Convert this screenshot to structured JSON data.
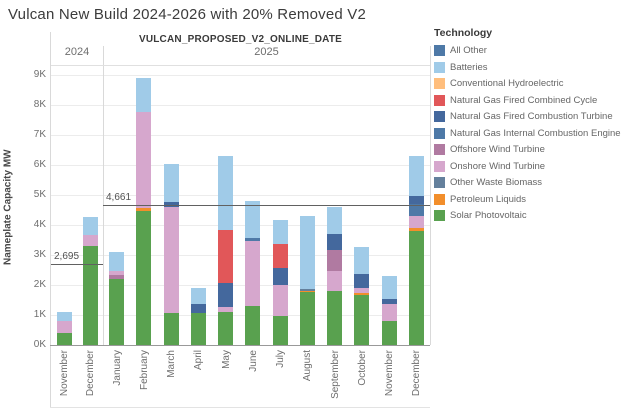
{
  "page": {
    "title": "Vulcan New Build 2024-2026 with 20% Removed V2"
  },
  "legend": {
    "title": "Technology"
  },
  "chart_data": {
    "type": "bar",
    "stacked": true,
    "field_label": "VULCAN_PROPOSED_V2_ONLINE_DATE",
    "ylabel": "Nameplate Capacity MW",
    "yticks": [
      "0K",
      "1K",
      "2K",
      "3K",
      "4K",
      "5K",
      "6K",
      "7K",
      "8K",
      "9K"
    ],
    "ylim": [
      0,
      9333
    ],
    "grid": true,
    "legend_position": "right",
    "technologies": [
      {
        "id": "all_other",
        "name": "All Other",
        "color": "#4e79a7"
      },
      {
        "id": "batteries",
        "name": "Batteries",
        "color": "#a0cbe8"
      },
      {
        "id": "conv_hydro",
        "name": "Conventional Hydroelectric",
        "color": "#ffbe7d"
      },
      {
        "id": "ngcc",
        "name": "Natural Gas Fired Combined Cycle",
        "color": "#e15759"
      },
      {
        "id": "ngct",
        "name": "Natural Gas Fired Combustion Turbine",
        "color": "#44689d"
      },
      {
        "id": "ngice",
        "name": "Natural Gas Internal Combustion Engine",
        "color": "#4e79a7"
      },
      {
        "id": "offshore",
        "name": "Offshore Wind Turbine",
        "color": "#b07aa1"
      },
      {
        "id": "onshore",
        "name": "Onshore Wind Turbine",
        "color": "#d6a7cd"
      },
      {
        "id": "biomass",
        "name": "Other Waste Biomass",
        "color": "#64809c"
      },
      {
        "id": "petroleum",
        "name": "Petroleum Liquids",
        "color": "#f28e2b"
      },
      {
        "id": "solar",
        "name": "Solar Photovoltaic",
        "color": "#59a14f"
      }
    ],
    "panes": [
      {
        "year": "2024",
        "reference_line": {
          "value": 2695,
          "label": "2,695"
        },
        "bars": [
          {
            "month": "November",
            "segments": [
              {
                "tech": "solar",
                "mw": 400
              },
              {
                "tech": "onshore",
                "mw": 400
              },
              {
                "tech": "batteries",
                "mw": 300
              }
            ]
          },
          {
            "month": "December",
            "segments": [
              {
                "tech": "solar",
                "mw": 3300
              },
              {
                "tech": "onshore",
                "mw": 350
              },
              {
                "tech": "batteries",
                "mw": 600
              }
            ]
          }
        ]
      },
      {
        "year": "2025",
        "reference_line": {
          "value": 4661,
          "label": "4,661"
        },
        "bars": [
          {
            "month": "January",
            "segments": [
              {
                "tech": "solar",
                "mw": 2200
              },
              {
                "tech": "offshore",
                "mw": 130
              },
              {
                "tech": "onshore",
                "mw": 130
              },
              {
                "tech": "batteries",
                "mw": 640
              }
            ]
          },
          {
            "month": "February",
            "segments": [
              {
                "tech": "solar",
                "mw": 4450
              },
              {
                "tech": "petroleum",
                "mw": 130
              },
              {
                "tech": "onshore",
                "mw": 3200
              },
              {
                "tech": "batteries",
                "mw": 1120
              }
            ]
          },
          {
            "month": "March",
            "segments": [
              {
                "tech": "solar",
                "mw": 1050
              },
              {
                "tech": "onshore",
                "mw": 3550
              },
              {
                "tech": "ngct",
                "mw": 150
              },
              {
                "tech": "batteries",
                "mw": 1280
              }
            ]
          },
          {
            "month": "April",
            "segments": [
              {
                "tech": "solar",
                "mw": 1050
              },
              {
                "tech": "ngct",
                "mw": 300
              },
              {
                "tech": "batteries",
                "mw": 550
              }
            ]
          },
          {
            "month": "May",
            "segments": [
              {
                "tech": "solar",
                "mw": 1100
              },
              {
                "tech": "onshore",
                "mw": 170
              },
              {
                "tech": "ngct",
                "mw": 800
              },
              {
                "tech": "ngcc",
                "mw": 1750
              },
              {
                "tech": "batteries",
                "mw": 2480
              }
            ]
          },
          {
            "month": "June",
            "segments": [
              {
                "tech": "solar",
                "mw": 1300
              },
              {
                "tech": "onshore",
                "mw": 2150
              },
              {
                "tech": "ngice",
                "mw": 100
              },
              {
                "tech": "batteries",
                "mw": 1250
              }
            ]
          },
          {
            "month": "July",
            "segments": [
              {
                "tech": "solar",
                "mw": 950
              },
              {
                "tech": "onshore",
                "mw": 1050
              },
              {
                "tech": "ngct",
                "mw": 580
              },
              {
                "tech": "ngcc",
                "mw": 800
              },
              {
                "tech": "batteries",
                "mw": 800
              }
            ]
          },
          {
            "month": "August",
            "segments": [
              {
                "tech": "solar",
                "mw": 1750
              },
              {
                "tech": "petroleum",
                "mw": 50
              },
              {
                "tech": "biomass",
                "mw": 60
              },
              {
                "tech": "batteries",
                "mw": 2440
              }
            ]
          },
          {
            "month": "September",
            "segments": [
              {
                "tech": "solar",
                "mw": 1800
              },
              {
                "tech": "onshore",
                "mw": 650
              },
              {
                "tech": "offshore",
                "mw": 700
              },
              {
                "tech": "ngct",
                "mw": 550
              },
              {
                "tech": "batteries",
                "mw": 900
              }
            ]
          },
          {
            "month": "October",
            "segments": [
              {
                "tech": "solar",
                "mw": 1650
              },
              {
                "tech": "petroleum",
                "mw": 80
              },
              {
                "tech": "onshore",
                "mw": 170
              },
              {
                "tech": "ngct",
                "mw": 450
              },
              {
                "tech": "batteries",
                "mw": 900
              }
            ]
          },
          {
            "month": "November",
            "segments": [
              {
                "tech": "solar",
                "mw": 800
              },
              {
                "tech": "onshore",
                "mw": 580
              },
              {
                "tech": "ngct",
                "mw": 160
              },
              {
                "tech": "batteries",
                "mw": 760
              }
            ]
          },
          {
            "month": "December",
            "segments": [
              {
                "tech": "solar",
                "mw": 3800
              },
              {
                "tech": "petroleum",
                "mw": 100
              },
              {
                "tech": "onshore",
                "mw": 400
              },
              {
                "tech": "ngice",
                "mw": 390
              },
              {
                "tech": "ngct",
                "mw": 260
              },
              {
                "tech": "batteries",
                "mw": 1350
              }
            ]
          }
        ]
      }
    ]
  }
}
